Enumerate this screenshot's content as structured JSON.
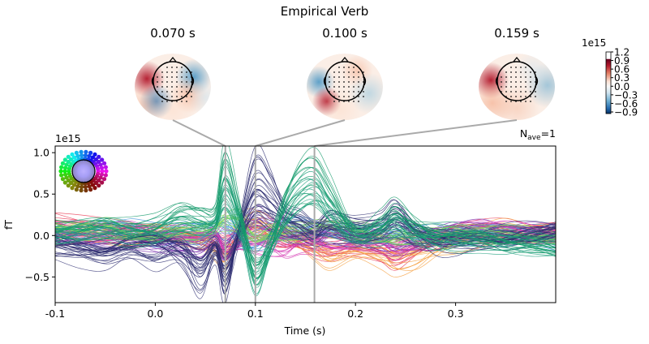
{
  "chart_data": {
    "type": "line",
    "title": "Empirical Verb",
    "xlabel": "Time (s)",
    "ylabel": "fT",
    "y_scale_label": "1e15",
    "xlim": [
      -0.1,
      0.4
    ],
    "ylim": [
      -0.81,
      1.08
    ],
    "x_ticks": [
      "-0.1",
      "0.0",
      "0.1",
      "0.2",
      "0.3"
    ],
    "x_tick_values": [
      -0.1,
      0.0,
      0.1,
      0.2,
      0.3
    ],
    "y_ticks": [
      "−0.5",
      "0.0",
      "0.5",
      "1.0"
    ],
    "y_tick_values": [
      -0.5,
      0.0,
      0.5,
      1.0
    ],
    "grid": false,
    "nave": {
      "prefix": "N",
      "sub": "ave",
      "suffix": "=1"
    },
    "topomap_times": [
      0.07,
      0.1,
      0.159
    ],
    "topomap_labels": [
      "0.070 s",
      "0.100 s",
      "0.159 s"
    ],
    "colorbar": {
      "scale_label": "1e15",
      "ticks": [
        "1.2",
        "0.9",
        "0.6",
        "0.3",
        "0.0",
        "−0.3",
        "−0.6",
        "−0.9"
      ],
      "tick_values": [
        1.2,
        0.9,
        0.6,
        0.3,
        0.0,
        -0.3,
        -0.6,
        -0.9
      ],
      "colormap": "RdBu_r"
    },
    "x": [
      -0.1,
      -0.075,
      -0.05,
      -0.025,
      0,
      0.025,
      0.045,
      0.06,
      0.07,
      0.085,
      0.1,
      0.115,
      0.13,
      0.145,
      0.16,
      0.175,
      0.2,
      0.225,
      0.24,
      0.26,
      0.28,
      0.3,
      0.325,
      0.35,
      0.375,
      0.4
    ],
    "series": [
      {
        "color": "#139a6a",
        "values": [
          0.05,
          0.1,
          0.15,
          0.1,
          0.15,
          0.35,
          0.3,
          0.3,
          1.0,
          0.3,
          -0.5,
          -0.1,
          0.5,
          0.85,
          0.92,
          0.6,
          0.05,
          0.2,
          0.35,
          0.15,
          0.0,
          0.0,
          -0.05,
          -0.1,
          -0.1,
          -0.15
        ]
      },
      {
        "color": "#2a2a6e",
        "values": [
          -0.1,
          -0.15,
          -0.2,
          -0.1,
          -0.1,
          -0.3,
          -0.5,
          -0.2,
          -0.7,
          0.2,
          0.93,
          0.7,
          0.3,
          0.2,
          0.1,
          0.3,
          0.2,
          0.2,
          0.35,
          0.05,
          -0.1,
          -0.1,
          -0.05,
          -0.05,
          0.0,
          0.05
        ]
      },
      {
        "color": "#3b3b7a",
        "values": [
          -0.2,
          -0.25,
          -0.3,
          -0.2,
          -0.3,
          -0.2,
          -0.65,
          -0.2,
          -0.55,
          0.1,
          0.55,
          0.4,
          0.2,
          0.1,
          0.05,
          0.1,
          0.0,
          0.1,
          0.2,
          0.0,
          -0.05,
          0.0,
          0.0,
          0.05,
          0.05,
          0.1
        ]
      },
      {
        "color": "#1fa07e",
        "values": [
          0.0,
          0.05,
          0.1,
          0.05,
          0.1,
          0.2,
          0.15,
          0.2,
          0.7,
          0.1,
          -0.7,
          -0.2,
          0.4,
          0.7,
          0.75,
          0.4,
          0.0,
          0.1,
          0.25,
          0.05,
          -0.05,
          -0.1,
          -0.1,
          -0.15,
          -0.15,
          -0.2
        ]
      },
      {
        "color": "#e8344f",
        "values": [
          0.15,
          0.1,
          0.1,
          0.12,
          0.05,
          0.0,
          -0.05,
          -0.1,
          -0.2,
          0.05,
          0.1,
          0.0,
          -0.1,
          -0.15,
          -0.2,
          -0.2,
          -0.15,
          -0.2,
          -0.3,
          -0.2,
          -0.1,
          0.0,
          0.05,
          0.1,
          0.1,
          0.1
        ]
      },
      {
        "color": "#f5a142",
        "values": [
          0.0,
          0.05,
          0.0,
          -0.05,
          0.0,
          -0.05,
          -0.1,
          -0.2,
          -0.3,
          0.1,
          0.2,
          0.1,
          0.0,
          -0.1,
          -0.2,
          -0.3,
          -0.2,
          -0.3,
          -0.4,
          -0.35,
          -0.2,
          -0.1,
          0.0,
          0.05,
          0.0,
          0.0
        ]
      },
      {
        "color": "#7a2fb0",
        "values": [
          -0.05,
          -0.1,
          -0.1,
          -0.05,
          -0.1,
          -0.15,
          -0.2,
          -0.1,
          -0.3,
          0.0,
          0.3,
          0.2,
          0.05,
          -0.05,
          -0.1,
          0.0,
          0.0,
          -0.1,
          -0.15,
          -0.1,
          -0.05,
          0.05,
          0.1,
          0.05,
          0.1,
          0.1
        ]
      },
      {
        "color": "#3f8fd8",
        "values": [
          0.05,
          0.0,
          0.1,
          0.1,
          0.0,
          0.05,
          0.0,
          0.1,
          0.15,
          -0.05,
          -0.1,
          0.0,
          0.1,
          0.1,
          0.1,
          0.05,
          0.0,
          0.0,
          0.05,
          0.0,
          0.0,
          -0.05,
          0.0,
          0.0,
          0.0,
          -0.05
        ]
      },
      {
        "color": "#d63fb5",
        "values": [
          0.1,
          0.1,
          0.05,
          0.1,
          0.05,
          0.0,
          -0.05,
          0.0,
          -0.2,
          -0.1,
          -0.1,
          -0.15,
          -0.2,
          -0.1,
          -0.1,
          -0.15,
          -0.1,
          -0.1,
          -0.2,
          -0.1,
          -0.05,
          0.05,
          0.1,
          0.1,
          0.05,
          0.05
        ]
      },
      {
        "color": "#7ed957",
        "values": [
          0.1,
          0.05,
          0.1,
          0.05,
          0.05,
          0.1,
          0.05,
          0.1,
          0.2,
          0.2,
          0.0,
          0.1,
          0.1,
          0.05,
          0.1,
          0.1,
          0.05,
          0.0,
          0.0,
          0.05,
          0.0,
          0.0,
          0.0,
          0.0,
          0.0,
          0.0
        ]
      }
    ]
  }
}
